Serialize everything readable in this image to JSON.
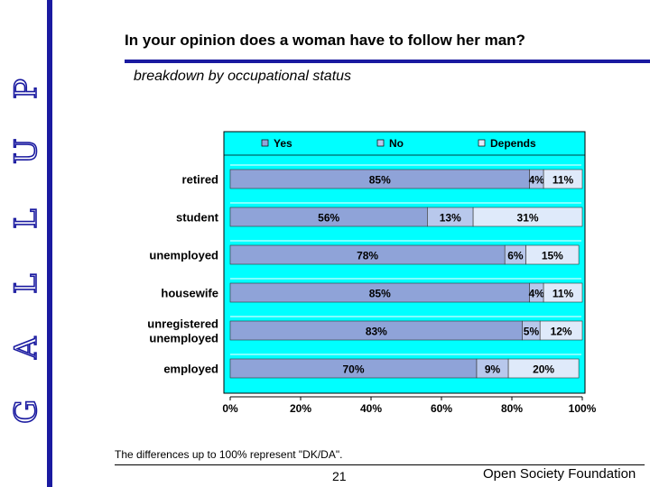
{
  "brand": {
    "letters": [
      "G",
      "A",
      "L",
      "L",
      "U",
      "P"
    ],
    "accent_color": "#1a1aa0"
  },
  "header": {
    "title": "In your opinion does a woman have to follow her man?",
    "subtitle": "breakdown by occupational status"
  },
  "footer": {
    "note": "The differences up to 100% represent \"DK/DA\".",
    "page_number": "21",
    "organization": "Open Society Foundation"
  },
  "chart_data": {
    "type": "bar",
    "orientation": "horizontal",
    "stacked": true,
    "categories": [
      "retired",
      "student",
      "unemployed",
      "housewife",
      "unregistered unemployed",
      "employed"
    ],
    "series": [
      {
        "name": "Yes",
        "values": [
          85,
          56,
          78,
          85,
          83,
          70
        ],
        "labels": [
          "85%",
          "56%",
          "78%",
          "85%",
          "83%",
          "70%"
        ],
        "color": "#8fa3d8"
      },
      {
        "name": "No",
        "values": [
          4,
          13,
          6,
          4,
          5,
          9
        ],
        "labels": [
          "4%",
          "13%",
          "6%",
          "4%",
          "5%",
          "9%"
        ],
        "color": "#b8c8ec"
      },
      {
        "name": "Depends",
        "values": [
          11,
          31,
          15,
          11,
          12,
          20
        ],
        "labels": [
          "11%",
          "31%",
          "15%",
          "11%",
          "12%",
          "20%"
        ],
        "color": "#dfeafa"
      }
    ],
    "xlim": [
      0,
      100
    ],
    "xticks": [
      "0%",
      "20%",
      "40%",
      "60%",
      "80%",
      "100%"
    ],
    "legend": "top",
    "plot_background": "#00ffff",
    "grid": false
  }
}
